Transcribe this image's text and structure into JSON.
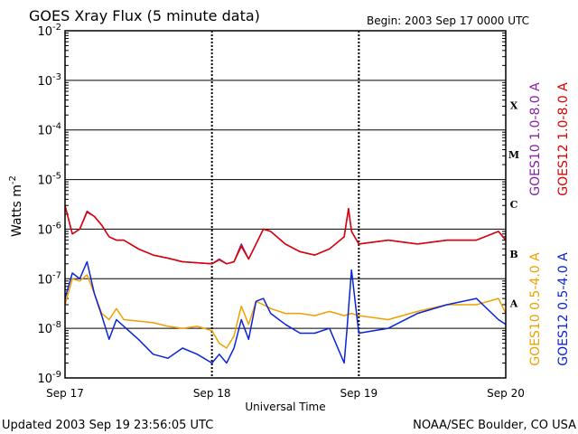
{
  "chart_data": {
    "type": "line",
    "title": "GOES Xray Flux (5 minute data)",
    "begin_label": "Begin:  2003 Sep 17 0000 UTC",
    "xlabel": "Universal Time",
    "ylabel": "Watts m",
    "ylabel_sup": "-2",
    "y_scale": "log",
    "ylim": [
      1e-09,
      0.01
    ],
    "xlim": [
      0,
      3
    ],
    "grid": "horizontal at each decade, dashed vertical at day boundaries",
    "x_tick_labels": [
      {
        "x": 0,
        "label": "Sep 17"
      },
      {
        "x": 1,
        "label": "Sep 18"
      },
      {
        "x": 2,
        "label": "Sep 19"
      },
      {
        "x": 3,
        "label": "Sep 20"
      }
    ],
    "y_tick_labels": [
      {
        "exp": -2,
        "mant": "10",
        "sup": "-2"
      },
      {
        "exp": -3,
        "mant": "10",
        "sup": "-3"
      },
      {
        "exp": -4,
        "mant": "10",
        "sup": "-4"
      },
      {
        "exp": -5,
        "mant": "10",
        "sup": "-5"
      },
      {
        "exp": -6,
        "mant": "10",
        "sup": "-6"
      },
      {
        "exp": -7,
        "mant": "10",
        "sup": "-7"
      },
      {
        "exp": -8,
        "mant": "10",
        "sup": "-8"
      },
      {
        "exp": -9,
        "mant": "10",
        "sup": "-9"
      }
    ],
    "flare_classes": [
      {
        "label": "X",
        "exp": -3.5
      },
      {
        "label": "M",
        "exp": -4.5
      },
      {
        "label": "C",
        "exp": -5.5
      },
      {
        "label": "B",
        "exp": -6.5
      },
      {
        "label": "A",
        "exp": -7.5
      }
    ],
    "legend_right": [
      {
        "name": "GOES12 1.0-8.0 A",
        "color": "#dd0000"
      },
      {
        "name": "GOES10 1.0-8.0 A",
        "color": "#8a1fa8"
      }
    ],
    "legend_bottom": [
      {
        "name": "GOES12 0.5-4.0 A",
        "color": "#0a24d6"
      },
      {
        "name": "GOES10 0.5-4.0 A",
        "color": "#f0a000"
      }
    ],
    "footer_left": "Updated 2003 Sep 19 23:56:05 UTC",
    "footer_right": "NOAA/SEC Boulder, CO USA",
    "series": [
      {
        "name": "GOES10 1.0-8.0 A",
        "color": "#8a1fa8",
        "x": [
          0,
          0.05,
          0.1,
          0.15,
          0.2,
          0.25,
          0.3,
          0.35,
          0.4,
          0.5,
          0.6,
          0.7,
          0.8,
          0.9,
          1.0,
          1.05,
          1.1,
          1.15,
          1.2,
          1.25,
          1.3,
          1.35,
          1.4,
          1.5,
          1.6,
          1.7,
          1.8,
          1.9,
          1.93,
          1.95,
          2.0,
          2.2,
          2.4,
          2.6,
          2.8,
          2.95,
          3.0
        ],
        "y": [
          3e-06,
          8e-07,
          1e-06,
          2.3e-06,
          1.8e-06,
          1.2e-06,
          7e-07,
          6e-07,
          6e-07,
          4e-07,
          3e-07,
          2.6e-07,
          2.2e-07,
          2.1e-07,
          2e-07,
          2.5e-07,
          2e-07,
          2.2e-07,
          5e-07,
          2.5e-07,
          5e-07,
          1e-06,
          9e-07,
          5e-07,
          3.5e-07,
          3e-07,
          4e-07,
          7e-07,
          2.6e-06,
          9e-07,
          5e-07,
          6e-07,
          5e-07,
          6e-07,
          6e-07,
          9e-07,
          6e-07
        ]
      },
      {
        "name": "GOES12 1.0-8.0 A",
        "color": "#dd0000",
        "x": [
          0,
          0.05,
          0.1,
          0.15,
          0.2,
          0.25,
          0.3,
          0.35,
          0.4,
          0.5,
          0.6,
          0.7,
          0.8,
          0.9,
          1.0,
          1.05,
          1.1,
          1.15,
          1.2,
          1.25,
          1.3,
          1.35,
          1.4,
          1.5,
          1.6,
          1.7,
          1.8,
          1.9,
          1.93,
          1.95,
          2.0,
          2.2,
          2.4,
          2.6,
          2.8,
          2.95,
          3.0
        ],
        "y": [
          3e-06,
          8e-07,
          1e-06,
          2.2e-06,
          1.8e-06,
          1.2e-06,
          7e-07,
          6e-07,
          6e-07,
          4e-07,
          3e-07,
          2.6e-07,
          2.2e-07,
          2.1e-07,
          2e-07,
          2.4e-07,
          2e-07,
          2.2e-07,
          4.5e-07,
          2.5e-07,
          5e-07,
          1e-06,
          9e-07,
          5e-07,
          3.5e-07,
          3e-07,
          4e-07,
          7e-07,
          2.6e-06,
          9e-07,
          5e-07,
          6e-07,
          5e-07,
          6e-07,
          6e-07,
          9e-07,
          6e-07
        ]
      },
      {
        "name": "GOES10 0.5-4.0 A",
        "color": "#f0a000",
        "x": [
          0,
          0.05,
          0.1,
          0.15,
          0.2,
          0.25,
          0.3,
          0.35,
          0.4,
          0.5,
          0.6,
          0.7,
          0.8,
          0.9,
          1.0,
          1.05,
          1.1,
          1.15,
          1.2,
          1.25,
          1.3,
          1.35,
          1.4,
          1.5,
          1.6,
          1.7,
          1.8,
          1.9,
          1.95,
          2.0,
          2.2,
          2.4,
          2.6,
          2.8,
          2.95,
          3.0
        ],
        "y": [
          3e-08,
          1e-07,
          9e-08,
          1.2e-07,
          5e-08,
          2e-08,
          1.5e-08,
          2.5e-08,
          1.5e-08,
          1.4e-08,
          1.3e-08,
          1.1e-08,
          1e-08,
          1.1e-08,
          9e-09,
          5e-09,
          4e-09,
          7e-09,
          2.8e-08,
          1.2e-08,
          3.5e-08,
          3e-08,
          2.5e-08,
          2e-08,
          2e-08,
          1.8e-08,
          2.2e-08,
          1.8e-08,
          2e-08,
          1.8e-08,
          1.5e-08,
          2.2e-08,
          3e-08,
          3e-08,
          4e-08,
          2e-08
        ]
      },
      {
        "name": "GOES12 0.5-4.0 A",
        "color": "#0a24d6",
        "x": [
          0,
          0.05,
          0.1,
          0.15,
          0.2,
          0.25,
          0.3,
          0.35,
          0.4,
          0.5,
          0.6,
          0.7,
          0.8,
          0.9,
          1.0,
          1.05,
          1.1,
          1.15,
          1.2,
          1.25,
          1.3,
          1.35,
          1.4,
          1.5,
          1.6,
          1.7,
          1.8,
          1.9,
          1.92,
          1.95,
          2.0,
          2.2,
          2.4,
          2.6,
          2.8,
          2.95,
          3.0
        ],
        "y": [
          4e-08,
          1.3e-07,
          1e-07,
          2.2e-07,
          5e-08,
          1.8e-08,
          6e-09,
          1.5e-08,
          1.1e-08,
          6e-09,
          3e-09,
          2.5e-09,
          4e-09,
          3e-09,
          2e-09,
          3e-09,
          2e-09,
          4e-09,
          1.5e-08,
          6e-09,
          3.5e-08,
          4e-08,
          2e-08,
          1.2e-08,
          8e-09,
          8e-09,
          1e-08,
          2e-09,
          1e-08,
          1.5e-07,
          8e-09,
          1e-08,
          2e-08,
          3e-08,
          4e-08,
          1.5e-08,
          1.2e-08
        ]
      }
    ]
  }
}
